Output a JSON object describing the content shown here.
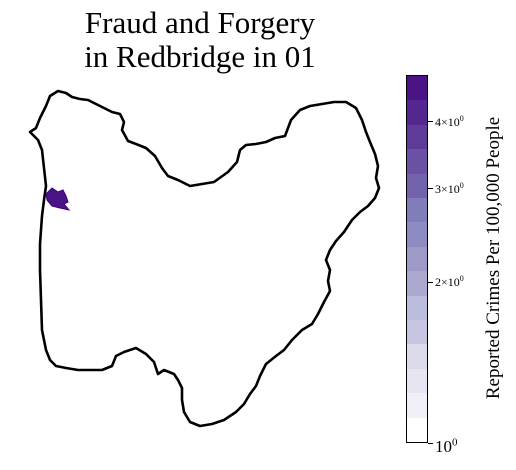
{
  "title_line1": "Fraud and Forgery",
  "title_line2": "in Redbridge in 01",
  "colorbar": {
    "label": "Reported Crimes Per 100,000 People",
    "scale": "log",
    "min": 1,
    "max": 4.9,
    "colormap": "Purples",
    "ticks": [
      {
        "value": 4,
        "mantissa": "4×10",
        "exp": "0",
        "major": false
      },
      {
        "value": 3,
        "mantissa": "3×10",
        "exp": "0",
        "major": false
      },
      {
        "value": 2,
        "mantissa": "2×10",
        "exp": "0",
        "major": false
      },
      {
        "value": 1,
        "mantissa": "10",
        "exp": "0",
        "major": true
      }
    ],
    "colors": [
      "#4a1486",
      "#54278f",
      "#5e3b96",
      "#6a51a3",
      "#7363ad",
      "#807dba",
      "#8d8bc2",
      "#9e9ac8",
      "#aca9d0",
      "#bcbddc",
      "#c7c6e2",
      "#dadaeb",
      "#e6e5f1",
      "#f2f0f7",
      "#ffffff"
    ]
  },
  "map": {
    "region": "Redbridge",
    "highlight_color": "#4a1486",
    "outline_color": "#000000"
  }
}
